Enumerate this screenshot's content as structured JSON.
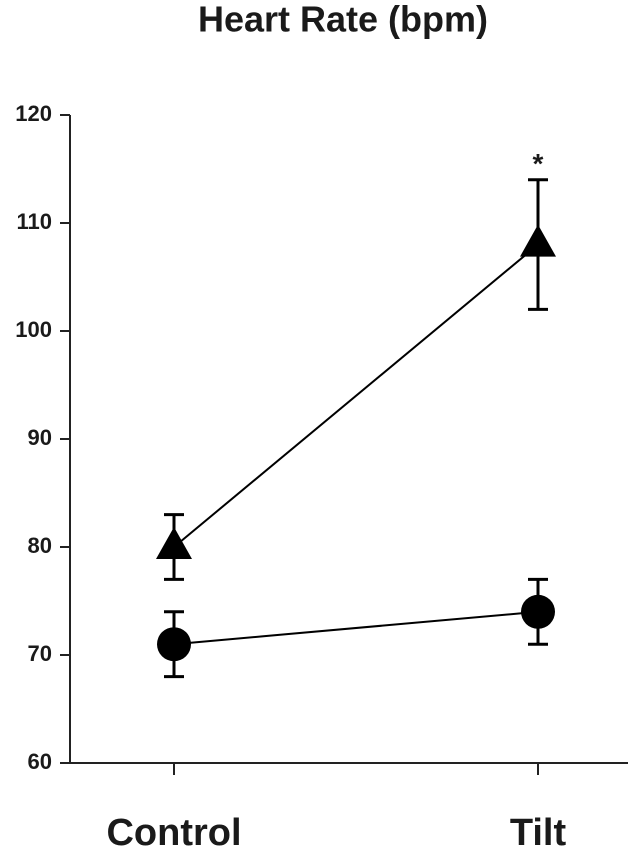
{
  "chart_data": {
    "type": "line",
    "title": "Heart Rate (bpm)",
    "categories": [
      "Control",
      "Tilt"
    ],
    "series": [
      {
        "marker": "triangle",
        "color": "#000000",
        "values": [
          80,
          108
        ],
        "errors": [
          3,
          6
        ]
      },
      {
        "marker": "circle",
        "color": "#000000",
        "values": [
          71,
          74
        ],
        "errors": [
          3,
          3
        ]
      }
    ],
    "annotations": [
      {
        "text": "*",
        "x": "Tilt"
      }
    ],
    "ylim": [
      60,
      120
    ],
    "yticks": [
      60,
      70,
      80,
      90,
      100,
      110,
      120
    ],
    "grid": false
  }
}
